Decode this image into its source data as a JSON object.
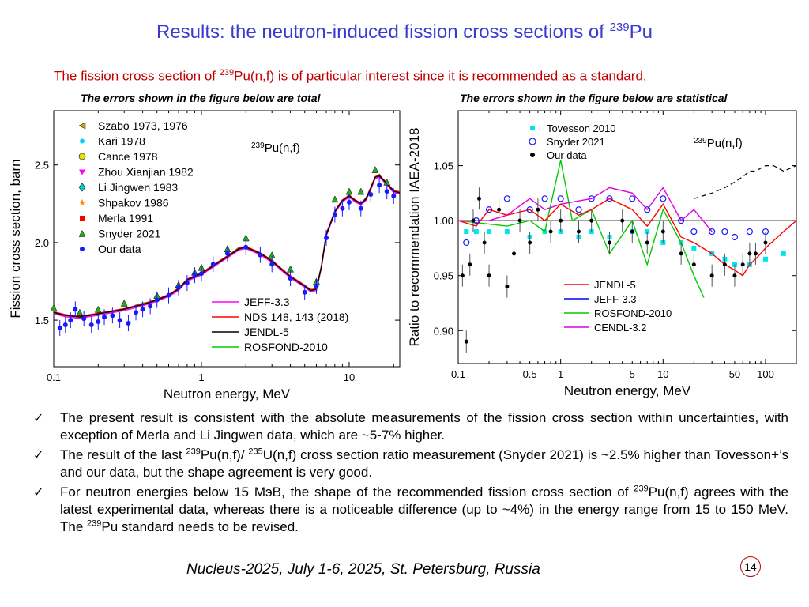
{
  "slide": {
    "title_main": "Results: the neutron-induced fission cross sections of ",
    "title_sup": "239",
    "title_tail": "Pu",
    "subtitle_pre": "The fission cross section of ",
    "subtitle_sup": "239",
    "subtitle_post": "Pu(n,f) is of particular interest since it is recommended as a standard.",
    "caption_left": "The errors shown in the figure below  are total",
    "caption_right": "The errors shown in the figure below  are statistical",
    "footer": "Nucleus-2025, July 1-6, 2025, St. Petersburg, Russia",
    "page_number": "14"
  },
  "bullets": [
    {
      "text": "The present result is consistent with the absolute measurements of the fission cross section within uncertainties, with exception of Merla and Li Jingwen data, which are ~5-7% higher."
    },
    {
      "pre": "The result of the last ",
      "sup1": "239",
      "mid": "Pu(n,f)/ ",
      "sup2": "235",
      "post": "U(n,f) cross section ratio measurement (Snyder 2021) is ~2.5% higher than Tovesson+’s and our data, but the shape agreement is very good."
    },
    {
      "pre": "For neutron energies below 15 MэВ, the shape of the recommended fission cross section of ",
      "sup1": "239",
      "mid": "Pu(n,f) agrees with the latest experimental data, whereas there is a noticeable difference (up to ~4%) in the energy range from 15 to 150 MeV. The ",
      "sup2": "239",
      "post": "Pu standard needs to be revised."
    }
  ],
  "colors": {
    "title": "#3a3ad0",
    "subtitle": "#c00000",
    "jeff": "#ff00ff",
    "nds": "#ff0000",
    "jendl": "#000000",
    "rosfond": "#00cc00",
    "cendl": "#e000e0",
    "jeff_right": "#0000ff",
    "tovesson": "#00e5ee",
    "our": "#1a1aff"
  },
  "chart_data": [
    {
      "type": "scatter",
      "title": "239Pu(n,f)",
      "title_sup": "239",
      "title_rest": "Pu(n,f)",
      "xlabel": "Neutron energy, MeV",
      "ylabel": "Fission cross section, barn",
      "xscale": "log",
      "xlim": [
        0.1,
        22
      ],
      "ylim": [
        1.2,
        2.85
      ],
      "xticks": [
        0.1,
        1,
        10
      ],
      "xtick_labels": [
        "0.1",
        "1",
        "10"
      ],
      "yticks": [
        1.5,
        2.0,
        2.5
      ],
      "ytick_labels": [
        "1.5",
        "2.0",
        "2.5"
      ],
      "legend_points": [
        {
          "name": "Szabo 1973, 1976",
          "marker": "tri-left",
          "color": "#c8a000"
        },
        {
          "name": "Kari 1978",
          "marker": "dot",
          "color": "#00d0ff"
        },
        {
          "name": "Cance 1978",
          "marker": "circle",
          "color": "#e8e000"
        },
        {
          "name": "Zhou Xianjian 1982",
          "marker": "tri-down",
          "color": "#ff00ff"
        },
        {
          "name": "Li Jingwen 1983",
          "marker": "diamond",
          "color": "#00d0d0"
        },
        {
          "name": "Shpakov 1986",
          "marker": "star",
          "color": "#ff8c00"
        },
        {
          "name": "Merla 1991",
          "marker": "square",
          "color": "#ff0000"
        },
        {
          "name": "Snyder 2021",
          "marker": "tri-up",
          "color": "#22aa22"
        },
        {
          "name": "Our data",
          "marker": "dot",
          "color": "#1a1aff"
        }
      ],
      "legend_points_position": "top-left",
      "legend_lines": [
        {
          "name": "JEFF-3.3",
          "color": "#ff00ff"
        },
        {
          "name": "NDS 148, 143 (2018)",
          "color": "#ff0000"
        },
        {
          "name": "JENDL-5",
          "color": "#000000"
        },
        {
          "name": "ROSFOND-2010",
          "color": "#00cc00"
        }
      ],
      "legend_lines_position": "bottom-center",
      "curve": {
        "x": [
          0.1,
          0.12,
          0.15,
          0.2,
          0.3,
          0.4,
          0.5,
          0.6,
          0.7,
          0.8,
          0.9,
          1.0,
          1.2,
          1.5,
          1.8,
          2.0,
          2.5,
          3.0,
          4.0,
          5.0,
          5.5,
          6.0,
          6.5,
          7.0,
          8.0,
          9.0,
          10.0,
          11.0,
          12.0,
          13.0,
          14.0,
          15.0,
          16.0,
          18.0,
          20.0,
          22.0
        ],
        "y": [
          1.55,
          1.53,
          1.52,
          1.54,
          1.57,
          1.6,
          1.63,
          1.66,
          1.7,
          1.76,
          1.78,
          1.8,
          1.85,
          1.91,
          1.96,
          1.97,
          1.93,
          1.88,
          1.78,
          1.72,
          1.69,
          1.7,
          1.85,
          2.05,
          2.2,
          2.27,
          2.3,
          2.27,
          2.25,
          2.28,
          2.35,
          2.42,
          2.43,
          2.38,
          2.33,
          2.32
        ]
      },
      "our_data": {
        "x": [
          0.11,
          0.12,
          0.13,
          0.14,
          0.16,
          0.18,
          0.2,
          0.22,
          0.25,
          0.28,
          0.32,
          0.36,
          0.4,
          0.45,
          0.5,
          0.6,
          0.7,
          0.8,
          0.9,
          1.0,
          1.2,
          1.5,
          2.0,
          2.5,
          3.0,
          4.0,
          5.0,
          6.0,
          7.0,
          8.0,
          9.0,
          10.0,
          12.0,
          14.0,
          16.0,
          18.0,
          20.0
        ],
        "y": [
          1.45,
          1.47,
          1.5,
          1.57,
          1.51,
          1.47,
          1.49,
          1.52,
          1.53,
          1.5,
          1.48,
          1.55,
          1.57,
          1.59,
          1.63,
          1.66,
          1.71,
          1.74,
          1.79,
          1.8,
          1.86,
          1.93,
          1.97,
          1.92,
          1.86,
          1.77,
          1.68,
          1.72,
          2.03,
          2.18,
          2.22,
          2.26,
          2.22,
          2.31,
          2.37,
          2.33,
          2.3
        ]
      },
      "snyder": {
        "x": [
          0.1,
          0.15,
          0.2,
          0.3,
          0.5,
          0.7,
          0.9,
          1.0,
          1.5,
          2.0,
          3.0,
          4.0,
          6.0,
          8.0,
          10.0,
          12.0,
          15.0,
          18.0
        ],
        "y": [
          1.58,
          1.55,
          1.57,
          1.61,
          1.66,
          1.73,
          1.81,
          1.84,
          1.96,
          2.03,
          1.92,
          1.83,
          1.75,
          2.28,
          2.33,
          2.33,
          2.47,
          2.39
        ]
      }
    },
    {
      "type": "line",
      "title": "239Pu(n,f)",
      "title_sup": "239",
      "title_rest": "Pu(n,f)",
      "xlabel": "Neutron energy, MeV",
      "ylabel": "Ratio to recommendation IAEA-2018",
      "xscale": "log",
      "xlim": [
        0.1,
        200
      ],
      "ylim": [
        0.87,
        1.1
      ],
      "xticks": [
        0.1,
        0.5,
        1,
        5,
        10,
        50,
        100
      ],
      "xtick_labels": [
        "0.1",
        "0.5",
        "1",
        "5",
        "10",
        "50",
        "100"
      ],
      "yticks": [
        0.9,
        0.95,
        1.0,
        1.05
      ],
      "ytick_labels": [
        "0.90",
        "0.95",
        "1.00",
        "1.05"
      ],
      "reference_line": 1.0,
      "legend_points": [
        {
          "name": "Tovesson 2010",
          "marker": "square",
          "color": "#00e5ee"
        },
        {
          "name": "Snyder 2021",
          "marker": "open-circle",
          "color": "#1a1aff"
        },
        {
          "name": "Our data",
          "marker": "dot",
          "color": "#000000"
        }
      ],
      "legend_points_position": "top-left",
      "legend_lines": [
        {
          "name": "JENDL-5",
          "color": "#ff0000"
        },
        {
          "name": "JEFF-3.3",
          "color": "#0000ff"
        },
        {
          "name": "ROSFOND-2010",
          "color": "#00cc00"
        },
        {
          "name": "CENDL-3.2",
          "color": "#e000e0"
        }
      ],
      "legend_lines_position": "bottom-center",
      "jendl": {
        "x": [
          0.1,
          0.15,
          0.2,
          0.3,
          0.5,
          0.7,
          1,
          1.5,
          2,
          3,
          5,
          7,
          10,
          15,
          20,
          30,
          40,
          50,
          60,
          70,
          80,
          100,
          150,
          200
        ],
        "y": [
          1.0,
          0.995,
          1.01,
          1.005,
          1.01,
          1.0,
          1.015,
          1.005,
          1.01,
          1.02,
          1.01,
          0.995,
          1.015,
          0.985,
          0.98,
          0.97,
          0.96,
          0.955,
          0.95,
          0.96,
          0.965,
          0.975,
          0.99,
          1.0
        ]
      },
      "cendl": {
        "x": [
          0.1,
          0.2,
          0.3,
          0.5,
          0.7,
          1,
          2,
          3,
          5,
          7,
          10,
          15,
          20,
          30
        ],
        "y": [
          1.0,
          1.0,
          1.005,
          1.02,
          1.01,
          1.015,
          1.02,
          1.03,
          1.025,
          1.01,
          1.03,
          1.0,
          1.01,
          0.99
        ]
      },
      "rosfond": {
        "x": [
          0.1,
          0.3,
          0.5,
          0.7,
          1,
          1.3,
          2,
          3,
          5,
          7,
          10,
          15,
          20,
          25
        ],
        "y": [
          1.0,
          0.995,
          1.0,
          0.99,
          1.055,
          1.0,
          1.01,
          0.97,
          1.0,
          0.96,
          1.01,
          0.98,
          0.95,
          0.93
        ]
      },
      "dashed": {
        "x": [
          20,
          30,
          40,
          50,
          60,
          70,
          80,
          100,
          120,
          150,
          200
        ],
        "y": [
          1.02,
          1.025,
          1.03,
          1.035,
          1.04,
          1.045,
          1.045,
          1.05,
          1.05,
          1.045,
          1.05
        ]
      },
      "our_data": {
        "x": [
          0.11,
          0.12,
          0.13,
          0.14,
          0.16,
          0.18,
          0.2,
          0.25,
          0.3,
          0.35,
          0.4,
          0.5,
          0.6,
          0.8,
          1.0,
          1.5,
          2,
          3,
          4,
          5,
          7,
          10,
          15,
          20,
          30,
          40,
          50,
          60,
          70,
          80,
          100
        ],
        "y": [
          0.95,
          0.89,
          0.96,
          1.0,
          1.02,
          0.98,
          0.95,
          1.01,
          0.94,
          0.97,
          1.0,
          0.98,
          1.01,
          0.99,
          1.0,
          0.99,
          1.0,
          0.98,
          1.0,
          0.99,
          0.98,
          0.99,
          0.97,
          0.96,
          0.95,
          0.96,
          0.95,
          0.96,
          0.97,
          0.97,
          0.98
        ]
      },
      "snyder": {
        "x": [
          0.12,
          0.15,
          0.2,
          0.3,
          0.5,
          0.7,
          1,
          1.5,
          2,
          3,
          5,
          7,
          10,
          15,
          20,
          30,
          40,
          50,
          70,
          100
        ],
        "y": [
          0.98,
          1.0,
          1.01,
          1.02,
          1.01,
          1.02,
          1.02,
          1.01,
          1.02,
          1.02,
          1.02,
          1.01,
          1.02,
          1.0,
          0.99,
          0.99,
          0.99,
          0.985,
          0.99,
          0.99
        ]
      },
      "tovesson": {
        "x": [
          0.12,
          0.15,
          0.2,
          0.3,
          0.5,
          0.7,
          1,
          1.5,
          2,
          3,
          5,
          7,
          10,
          15,
          20,
          30,
          40,
          50,
          70,
          100,
          150
        ],
        "y": [
          0.99,
          0.99,
          0.99,
          0.99,
          0.985,
          0.99,
          0.99,
          0.985,
          0.99,
          0.985,
          0.99,
          0.99,
          0.98,
          0.98,
          0.975,
          0.97,
          0.965,
          0.96,
          0.96,
          0.965,
          0.97
        ]
      }
    }
  ]
}
